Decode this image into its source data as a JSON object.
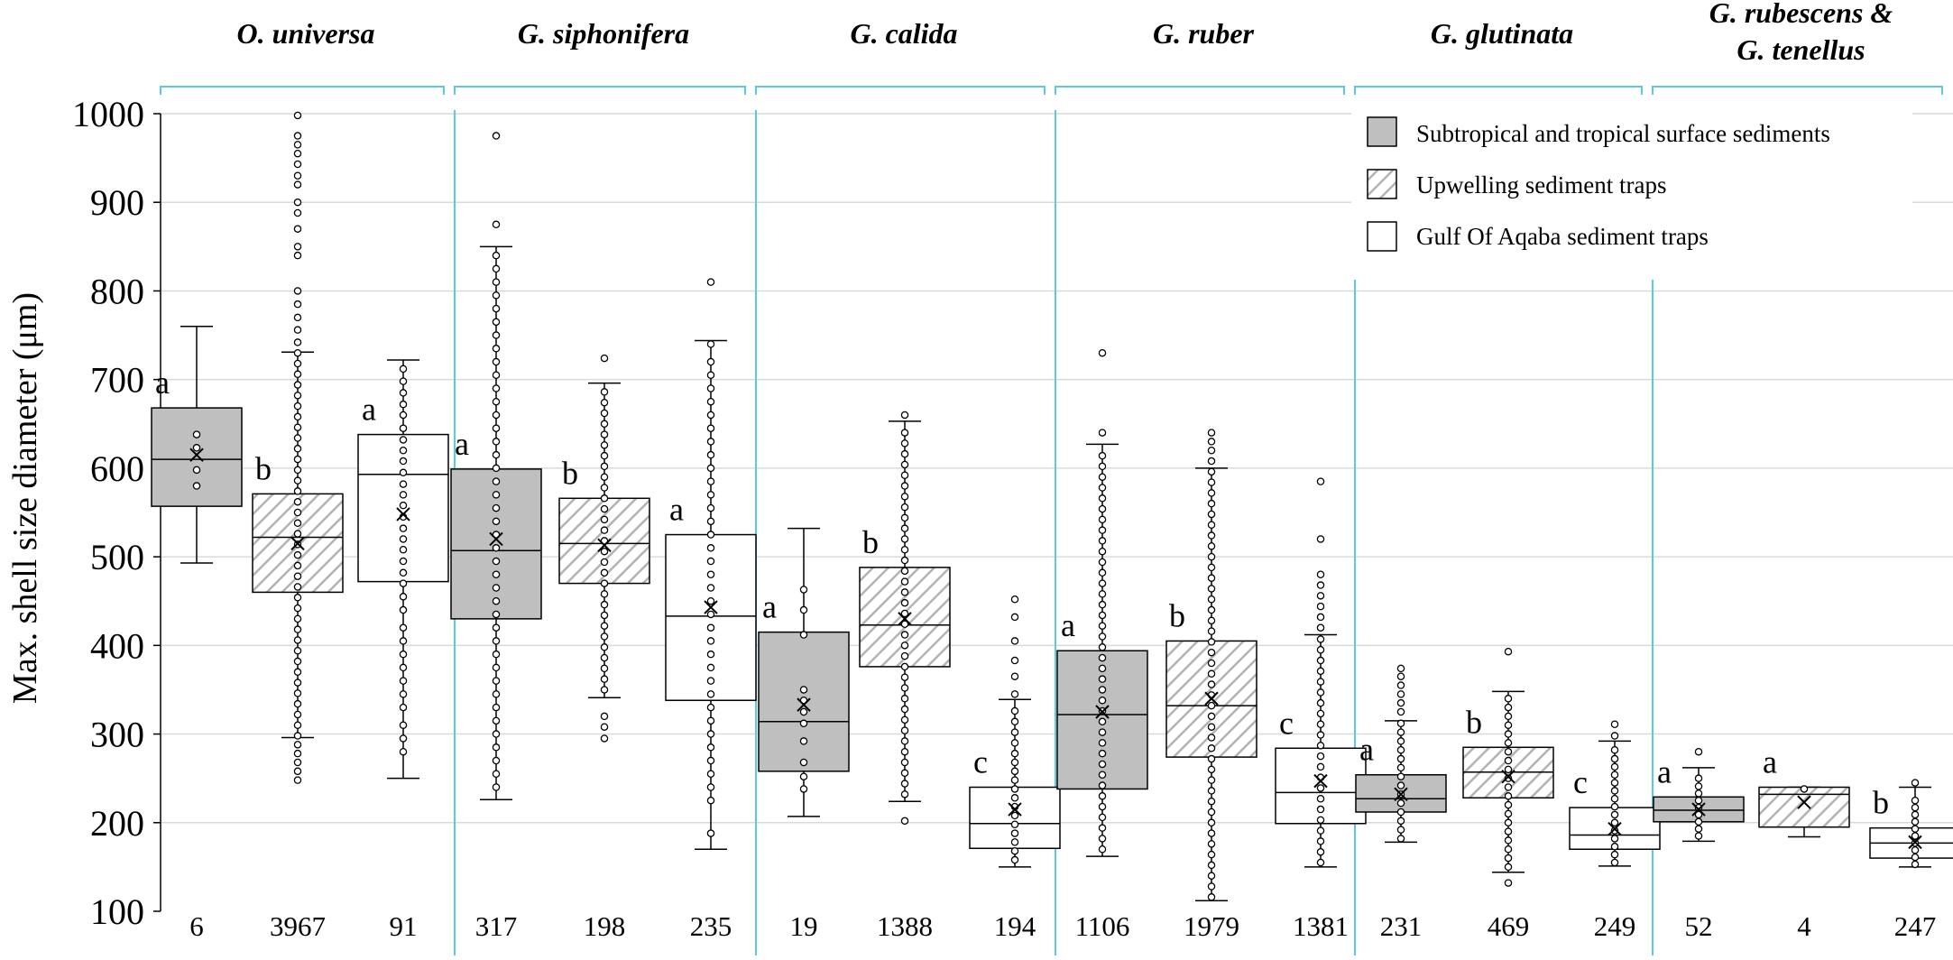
{
  "chart_data": {
    "type": "box",
    "ylabel": "Max. shell size diameter (μm)",
    "ylim": [
      100,
      1000
    ],
    "yticks": [
      100,
      200,
      300,
      400,
      500,
      600,
      700,
      800,
      900,
      1000
    ],
    "grid": true,
    "legend_position": "top-right",
    "legend": [
      {
        "name": "Subtropical and tropical surface sediments",
        "fill": "gray"
      },
      {
        "name": "Upwelling sediment traps",
        "fill": "hatch"
      },
      {
        "name": "Gulf Of Aqaba sediment traps",
        "fill": "white"
      }
    ],
    "colors": {
      "gray_fill": "#bfbfbf",
      "hatch_line": "#b3b3b3",
      "divider": "#5bc8e6",
      "box_stroke": "#000000"
    },
    "groups": [
      {
        "name": "O. universa",
        "boxes": [
          {
            "series": "Subtropical and tropical surface sediments",
            "n": "6",
            "letter": "a",
            "q1": 557,
            "median": 610,
            "q3": 668,
            "mean": 615,
            "whisker_low": 493,
            "whisker_high": 760,
            "points": [
              580,
              598,
              623,
              638
            ]
          },
          {
            "series": "Upwelling sediment traps",
            "n": "3967",
            "letter": "b",
            "q1": 460,
            "median": 522,
            "q3": 571,
            "mean": 515,
            "whisker_low": 296,
            "whisker_high": 731,
            "points": [
              248,
              258,
              268,
              278,
              288,
              298,
              310,
              322,
              334,
              346,
              358,
              370,
              382,
              394,
              406,
              418,
              430,
              442,
              454,
              466,
              478,
              490,
              502,
              514,
              526,
              538,
              550,
              562,
              574,
              586,
              598,
              610,
              622,
              634,
              646,
              658,
              670,
              682,
              694,
              706,
              718,
              730,
              742,
              756,
              770,
              785,
              800,
              840,
              850,
              870,
              888,
              900,
              920,
              930,
              943,
              955,
              965,
              975,
              998
            ]
          },
          {
            "series": "Gulf Of Aqaba sediment traps",
            "n": "91",
            "letter": "a",
            "q1": 472,
            "median": 593,
            "q3": 638,
            "mean": 548,
            "whisker_low": 250,
            "whisker_high": 722,
            "points": [
              280,
              295,
              310,
              330,
              345,
              360,
              375,
              390,
              405,
              420,
              440,
              455,
              470,
              482,
              495,
              508,
              520,
              532,
              545,
              558,
              570,
              582,
              595,
              608,
              620,
              632,
              645,
              660,
              672,
              685,
              698,
              712
            ]
          }
        ]
      },
      {
        "name": "G. siphonifera",
        "boxes": [
          {
            "series": "Subtropical and tropical surface sediments",
            "n": "317",
            "letter": "a",
            "q1": 430,
            "median": 507,
            "q3": 599,
            "mean": 520,
            "whisker_low": 226,
            "whisker_high": 850,
            "points": [
              240,
              255,
              270,
              285,
              300,
              315,
              330,
              345,
              360,
              375,
              390,
              405,
              420,
              435,
              450,
              465,
              480,
              495,
              510,
              525,
              540,
              555,
              570,
              585,
              600,
              615,
              630,
              645,
              660,
              675,
              690,
              705,
              720,
              735,
              750,
              765,
              780,
              795,
              810,
              825,
              840,
              875,
              975
            ]
          },
          {
            "series": "Upwelling sediment traps",
            "n": "198",
            "letter": "b",
            "q1": 470,
            "median": 515,
            "q3": 566,
            "mean": 513,
            "whisker_low": 341,
            "whisker_high": 696,
            "points": [
              295,
              308,
              320,
              350,
              362,
              374,
              386,
              398,
              410,
              422,
              434,
              446,
              458,
              470,
              482,
              494,
              506,
              518,
              530,
              542,
              554,
              566,
              578,
              590,
              602,
              614,
              626,
              638,
              650,
              662,
              674,
              686,
              724
            ]
          },
          {
            "series": "Gulf Of Aqaba sediment traps",
            "n": "235",
            "letter": "a",
            "q1": 338,
            "median": 433,
            "q3": 525,
            "mean": 443,
            "whisker_low": 170,
            "whisker_high": 744,
            "points": [
              188,
              225,
              240,
              255,
              270,
              285,
              300,
              315,
              330,
              345,
              360,
              375,
              390,
              405,
              420,
              435,
              450,
              465,
              480,
              495,
              510,
              525,
              540,
              555,
              570,
              585,
              600,
              615,
              630,
              645,
              660,
              675,
              690,
              705,
              720,
              740,
              810
            ]
          }
        ]
      },
      {
        "name": "G. calida",
        "boxes": [
          {
            "series": "Subtropical and tropical surface sediments",
            "n": "19",
            "letter": "a",
            "q1": 258,
            "median": 314,
            "q3": 415,
            "mean": 333,
            "whisker_low": 207,
            "whisker_high": 532,
            "points": [
              238,
              252,
              268,
              292,
              312,
              325,
              338,
              350,
              412,
              440,
              463
            ]
          },
          {
            "series": "Upwelling sediment traps",
            "n": "1388",
            "letter": "b",
            "q1": 376,
            "median": 423,
            "q3": 488,
            "mean": 430,
            "whisker_low": 224,
            "whisker_high": 653,
            "points": [
              202,
              232,
              244,
              256,
              268,
              280,
              292,
              304,
              316,
              328,
              340,
              352,
              364,
              376,
              388,
              400,
              412,
              424,
              436,
              448,
              460,
              472,
              484,
              496,
              508,
              520,
              532,
              544,
              556,
              568,
              580,
              592,
              604,
              616,
              628,
              640,
              660
            ]
          },
          {
            "series": "Gulf Of Aqaba sediment traps",
            "n": "194",
            "letter": "c",
            "q1": 171,
            "median": 199,
            "q3": 240,
            "mean": 215,
            "whisker_low": 150,
            "whisker_high": 339,
            "points": [
              158,
              168,
              178,
              188,
              198,
              208,
              218,
              228,
              238,
              248,
              258,
              268,
              278,
              290,
              302,
              314,
              326,
              345,
              365,
              383,
              405,
              432,
              452
            ]
          }
        ]
      },
      {
        "name": "G. ruber",
        "boxes": [
          {
            "series": "Subtropical and tropical surface sediments",
            "n": "1106",
            "letter": "a",
            "q1": 238,
            "median": 322,
            "q3": 394,
            "mean": 325,
            "whisker_low": 162,
            "whisker_high": 627,
            "points": [
              170,
              182,
              194,
              206,
              218,
              230,
              242,
              254,
              266,
              278,
              290,
              302,
              314,
              326,
              338,
              350,
              362,
              374,
              386,
              398,
              410,
              422,
              434,
              446,
              458,
              470,
              482,
              494,
              506,
              518,
              530,
              542,
              554,
              566,
              578,
              590,
              602,
              614,
              640,
              730
            ]
          },
          {
            "series": "Upwelling sediment traps",
            "n": "1979",
            "letter": "b",
            "q1": 274,
            "median": 332,
            "q3": 405,
            "mean": 340,
            "whisker_low": 112,
            "whisker_high": 600,
            "points": [
              116,
              128,
              140,
              152,
              164,
              176,
              188,
              200,
              212,
              224,
              236,
              248,
              260,
              272,
              284,
              296,
              308,
              320,
              332,
              344,
              356,
              368,
              380,
              392,
              404,
              416,
              428,
              440,
              452,
              464,
              476,
              488,
              500,
              512,
              524,
              536,
              548,
              560,
              572,
              584,
              596,
              608,
              620,
              630,
              640
            ]
          },
          {
            "series": "Gulf Of Aqaba sediment traps",
            "n": "1381",
            "letter": "c",
            "q1": 199,
            "median": 234,
            "q3": 284,
            "mean": 247,
            "whisker_low": 150,
            "whisker_high": 412,
            "points": [
              155,
              167,
              179,
              191,
              203,
              215,
              227,
              239,
              251,
              263,
              275,
              287,
              299,
              311,
              323,
              335,
              347,
              359,
              371,
              383,
              395,
              407,
              420,
              432,
              444,
              456,
              468,
              480,
              520,
              585
            ]
          }
        ]
      },
      {
        "name": "G. glutinata",
        "boxes": [
          {
            "series": "Subtropical and tropical surface sediments",
            "n": "231",
            "letter": "a",
            "q1": 212,
            "median": 227,
            "q3": 254,
            "mean": 232,
            "whisker_low": 178,
            "whisker_high": 315,
            "points": [
              182,
              192,
              202,
              212,
              222,
              232,
              242,
              252,
              262,
              272,
              282,
              292,
              302,
              312,
              325,
              335,
              345,
              355,
              365,
              374
            ]
          },
          {
            "series": "Upwelling sediment traps",
            "n": "469",
            "letter": "b",
            "q1": 228,
            "median": 257,
            "q3": 285,
            "mean": 252,
            "whisker_low": 144,
            "whisker_high": 348,
            "points": [
              132,
              150,
              160,
              170,
              180,
              190,
              200,
              210,
              220,
              230,
              240,
              250,
              260,
              270,
              280,
              290,
              300,
              310,
              320,
              330,
              340,
              393
            ]
          },
          {
            "series": "Gulf Of Aqaba sediment traps",
            "n": "249",
            "letter": "c",
            "q1": 170,
            "median": 186,
            "q3": 217,
            "mean": 193,
            "whisker_low": 151,
            "whisker_high": 292,
            "points": [
              155,
              164,
              173,
              182,
              191,
              200,
              209,
              218,
              227,
              236,
              245,
              254,
              263,
              272,
              282,
              298,
              311
            ]
          }
        ]
      },
      {
        "name": "G. rubescens & G. tenellus",
        "name_lines": [
          "G. rubescens &",
          "G. tenellus"
        ],
        "boxes": [
          {
            "series": "Subtropical and tropical surface sediments",
            "n": "52",
            "letter": "a",
            "q1": 201,
            "median": 214,
            "q3": 229,
            "mean": 215,
            "whisker_low": 179,
            "whisker_high": 262,
            "points": [
              185,
              193,
              201,
              209,
              217,
              225,
              233,
              241,
              250,
              280
            ]
          },
          {
            "series": "Upwelling sediment traps",
            "n": "4",
            "letter": "a",
            "q1": 195,
            "median": 232,
            "q3": 240,
            "mean": 223,
            "whisker_low": 184,
            "whisker_high": 240,
            "points": [
              238
            ]
          },
          {
            "series": "Gulf Of Aqaba sediment traps",
            "n": "247",
            "letter": "b",
            "q1": 160,
            "median": 177,
            "q3": 194,
            "mean": 178,
            "whisker_low": 150,
            "whisker_high": 240,
            "points": [
              153,
              161,
              169,
              177,
              185,
              193,
              201,
              209,
              217,
              225,
              245
            ]
          }
        ]
      }
    ]
  }
}
